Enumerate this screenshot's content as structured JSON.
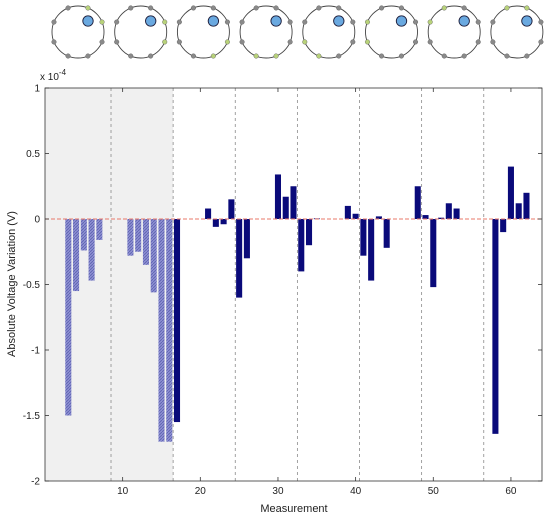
{
  "chart_data": {
    "type": "bar",
    "title": "",
    "xlabel": "Measurement",
    "ylabel": "Absolute Voltage Variation (V)",
    "y_exponent_label": "x 10",
    "y_exponent_power": "-4",
    "xlim": [
      0,
      64
    ],
    "ylim": [
      -2,
      1
    ],
    "xticks": [
      10,
      20,
      30,
      40,
      50,
      60
    ],
    "yticks": [
      -2,
      -1.5,
      -1,
      -0.5,
      0,
      0.5,
      1
    ],
    "ytick_labels": [
      "-2",
      "-1.5",
      "-1",
      "-0.5",
      "0",
      "0.5",
      "1"
    ],
    "xtick_labels": [
      "10",
      "20",
      "30",
      "40",
      "50",
      "60"
    ],
    "shaded_region": [
      0,
      16.5
    ],
    "section_dividers": [
      8.5,
      16.5,
      24.5,
      32.5,
      40.5,
      48.5,
      56.5
    ],
    "zero_line_color": "#e8786a",
    "series": [
      {
        "color": "#7b7fc4",
        "pattern": "hatched",
        "x": [
          3,
          4,
          5,
          6,
          7,
          11,
          12,
          13,
          14,
          15,
          16
        ],
        "values": [
          -1.5,
          -0.55,
          -0.24,
          -0.47,
          -0.16,
          -0.28,
          -0.25,
          -0.35,
          -0.56,
          -1.7,
          -1.7
        ]
      },
      {
        "color": "#0a0a7a",
        "pattern": "solid",
        "x": [
          17,
          21,
          22,
          23,
          24,
          25,
          26,
          30,
          31,
          32,
          33,
          34,
          35,
          39,
          40,
          41,
          42,
          43,
          44,
          48,
          49,
          50,
          51,
          52,
          53,
          58,
          59,
          60,
          61,
          62
        ],
        "values": [
          -1.55,
          0.08,
          -0.06,
          -0.04,
          0.15,
          -0.6,
          -0.3,
          0.34,
          0.17,
          0.25,
          -0.4,
          -0.2,
          0.005,
          0.1,
          0.04,
          -0.28,
          -0.47,
          0.02,
          -0.22,
          0.25,
          0.03,
          -0.52,
          0.01,
          0.12,
          0.08,
          -1.64,
          -0.1,
          0.4,
          0.12,
          0.2
        ]
      }
    ],
    "electrode_diagrams": {
      "count": 8,
      "electrodes_per_ring": 8,
      "object_color": "#6aa9e0",
      "active_pair_color": "#b8d27a",
      "electrode_color": "#8a8a8a"
    }
  }
}
